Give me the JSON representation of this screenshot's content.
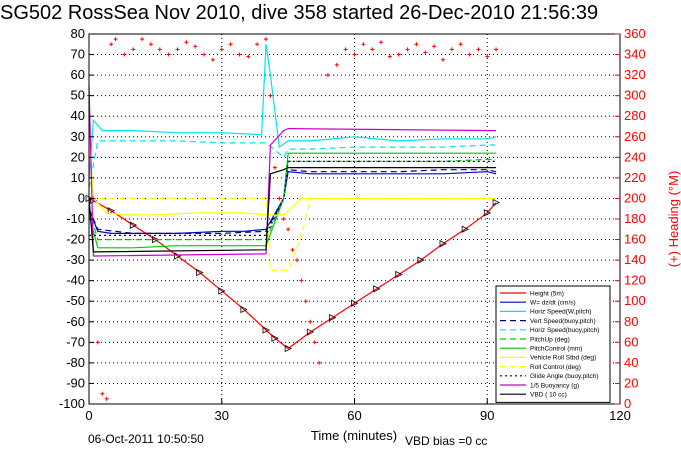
{
  "title": "SG502 RossSea Nov 2010, dive 358 started 26-Dec-2010 21:56:39",
  "footer": {
    "timestamp": "06-Oct-2011 10:50:50",
    "bias": "VBD bias =0 cc"
  },
  "chart_data": {
    "type": "line",
    "xlabel": "Time (minutes)",
    "ylabel_right": "(+) Heading (°M)",
    "xlim": [
      0,
      120
    ],
    "ylim_left": [
      -100,
      80
    ],
    "ylim_right": [
      0,
      360
    ],
    "x_ticks": [
      0,
      30,
      60,
      90,
      120
    ],
    "y_ticks_left": [
      80,
      70,
      60,
      50,
      40,
      30,
      20,
      10,
      0,
      -10,
      -20,
      -30,
      -40,
      -50,
      -60,
      -70,
      -80,
      -90,
      -100
    ],
    "y_ticks_right": [
      360,
      340,
      320,
      300,
      280,
      260,
      240,
      220,
      200,
      180,
      160,
      140,
      120,
      100,
      80,
      60,
      40,
      20,
      0
    ],
    "grid": true,
    "legend_position": "bottom-right",
    "series": [
      {
        "name": "Height (5m)",
        "color": "#ff0000",
        "style": "solid",
        "x": [
          0,
          1,
          5,
          10,
          15,
          20,
          25,
          30,
          35,
          40,
          42,
          45,
          50,
          55,
          60,
          65,
          70,
          75,
          80,
          85,
          90,
          92
        ],
        "y": [
          0,
          -1,
          -6,
          -13,
          -20,
          -28,
          -36,
          -45,
          -54,
          -64,
          -68,
          -73,
          -65,
          -58,
          -51,
          -44,
          -37,
          -30,
          -22,
          -15,
          -7,
          -2
        ]
      },
      {
        "name": "W= dz/dt (cm/s)",
        "color": "#0000cc",
        "style": "solid",
        "x": [
          0,
          2,
          5,
          10,
          20,
          30,
          35,
          40,
          44,
          45,
          50,
          60,
          70,
          80,
          90,
          92
        ],
        "y": [
          -5,
          -16,
          -17,
          -17,
          -17,
          -16,
          -16,
          -15,
          0,
          13,
          12,
          12,
          12,
          12,
          13,
          12
        ]
      },
      {
        "name": "Horiz Speed(W,pitch)",
        "color": "#00e5e5",
        "style": "solid",
        "x": [
          0,
          1,
          3,
          10,
          20,
          30,
          39,
          40,
          41,
          43,
          45,
          50,
          60,
          70,
          80,
          90,
          92
        ],
        "y": [
          10,
          38,
          33,
          33,
          32,
          32,
          31,
          75,
          60,
          25,
          28,
          28,
          30,
          28,
          29,
          29,
          30
        ]
      },
      {
        "name": "Vert Speed(buoy,pitch)",
        "color": "#000080",
        "style": "dashed",
        "x": [
          0,
          2,
          10,
          20,
          30,
          40,
          44,
          45,
          50,
          60,
          70,
          80,
          90,
          92
        ],
        "y": [
          -5,
          -15,
          -17,
          -17,
          -17,
          -16,
          0,
          14,
          13,
          13,
          13,
          14,
          14,
          13
        ]
      },
      {
        "name": "Horiz Speed(buoy,pitch)",
        "color": "#00e5e5",
        "style": "dashed",
        "x": [
          0,
          2,
          10,
          20,
          30,
          40,
          44,
          45,
          50,
          60,
          70,
          80,
          90,
          92
        ],
        "y": [
          5,
          28,
          28,
          28,
          27,
          27,
          20,
          24,
          24,
          25,
          25,
          25,
          26,
          26
        ]
      },
      {
        "name": "PitchUp (deg)",
        "color": "#00cc00",
        "style": "dashed",
        "x": [
          0,
          2,
          10,
          20,
          30,
          40,
          44,
          45,
          50,
          60,
          70,
          80,
          90,
          92
        ],
        "y": [
          -5,
          -20,
          -20,
          -20,
          -20,
          -20,
          0,
          18,
          18,
          18,
          18,
          18,
          19,
          19
        ]
      },
      {
        "name": "PitchControl (mm)",
        "color": "#00cc00",
        "style": "solid",
        "x": [
          0,
          2,
          10,
          20,
          30,
          40,
          44,
          45,
          50,
          60,
          70,
          80,
          90,
          92
        ],
        "y": [
          -8,
          -24,
          -24,
          -23,
          -23,
          -23,
          0,
          22,
          22,
          22,
          22,
          22,
          22,
          22
        ]
      },
      {
        "name": "Vehicle Roll Stbd (deg)",
        "color": "#ffff00",
        "style": "solid",
        "x": [
          0,
          1,
          4,
          8,
          15,
          25,
          35,
          40,
          44,
          48,
          50,
          60,
          70,
          80,
          90,
          92
        ],
        "y": [
          30,
          0,
          -7,
          -8,
          -8,
          -7,
          -7,
          -8,
          -8,
          0,
          0,
          0,
          0,
          0,
          0,
          0
        ]
      },
      {
        "name": "Roll Control (deg)",
        "color": "#ffff00",
        "style": "dashed",
        "x": [
          0,
          5,
          40,
          41,
          45,
          48,
          50,
          92
        ],
        "y": [
          0,
          0,
          0,
          -35,
          -35,
          -18,
          0,
          0
        ]
      },
      {
        "name": "Glide Angle (buoy,pitch)",
        "color": "#000080",
        "style": "dotted",
        "x": [
          0,
          2,
          40,
          44,
          45,
          92
        ],
        "y": [
          -18,
          -18,
          -18,
          0,
          18,
          18
        ]
      },
      {
        "name": "1/5 Buoyancy (g)",
        "color": "#cc00cc",
        "style": "solid",
        "x": [
          0,
          1,
          40,
          41,
          44,
          45,
          92
        ],
        "y": [
          55,
          -28,
          -27,
          26,
          33,
          34,
          33
        ]
      },
      {
        "name": "VBD ( 10 cc)",
        "color": "#000000",
        "style": "solid",
        "x": [
          0,
          1,
          40,
          41,
          44,
          45,
          92
        ],
        "y": [
          0,
          -26,
          -25,
          12,
          14,
          15,
          15
        ]
      }
    ],
    "heading_series": {
      "name": "Heading",
      "color": "#ff0000",
      "style": "markers",
      "x": [
        0,
        1,
        2,
        3,
        4,
        5,
        6,
        8,
        10,
        12,
        14,
        16,
        18,
        20,
        22,
        24,
        26,
        28,
        30,
        32,
        34,
        36,
        38,
        40,
        41,
        42,
        43,
        44,
        45,
        46,
        47,
        48,
        49,
        50,
        51,
        52,
        54,
        56,
        58,
        60,
        62,
        64,
        66,
        68,
        70,
        72,
        74,
        76,
        78,
        80,
        82,
        84,
        86,
        88,
        90,
        92
      ],
      "y": [
        300,
        200,
        60,
        10,
        5,
        350,
        355,
        340,
        345,
        355,
        350,
        345,
        340,
        345,
        352,
        348,
        340,
        335,
        345,
        350,
        340,
        338,
        350,
        355,
        300,
        230,
        200,
        180,
        170,
        150,
        140,
        120,
        100,
        80,
        60,
        40,
        320,
        330,
        345,
        340,
        350,
        345,
        352,
        338,
        340,
        345,
        350,
        342,
        348,
        335,
        345,
        350,
        340,
        345,
        338,
        345
      ]
    }
  }
}
